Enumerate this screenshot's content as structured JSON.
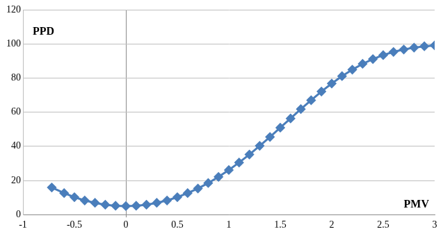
{
  "chart_data": {
    "type": "scatter",
    "x_label": "PMV",
    "y_label": "PPD",
    "series": [
      {
        "name": "PPD",
        "color": "#4a7ebb",
        "marker": "diamond",
        "line_style": "solid",
        "x": [
          -0.72,
          -0.6,
          -0.5,
          -0.4,
          -0.3,
          -0.2,
          -0.1,
          0,
          0.1,
          0.2,
          0.3,
          0.4,
          0.5,
          0.6,
          0.7,
          0.8,
          0.9,
          1.0,
          1.1,
          1.2,
          1.3,
          1.4,
          1.5,
          1.6,
          1.7,
          1.8,
          1.9,
          2.0,
          2.1,
          2.2,
          2.3,
          2.4,
          2.5,
          2.6,
          2.7,
          2.8,
          2.9,
          3.0
        ],
        "values": [
          15.9,
          12.6,
          10.2,
          8.3,
          6.9,
          5.8,
          5.2,
          5,
          5.2,
          5.8,
          6.9,
          8.3,
          10.2,
          12.6,
          15.3,
          18.5,
          22.1,
          26.1,
          30.5,
          35.2,
          40.3,
          45.5,
          50.9,
          56.3,
          61.8,
          67.0,
          72.1,
          76.8,
          81.1,
          84.9,
          88.3,
          91.1,
          93.4,
          95.3,
          96.7,
          97.8,
          98.6,
          99.1
        ]
      }
    ],
    "xlim": [
      -1,
      3
    ],
    "xticks": [
      -1,
      -0.5,
      0,
      0.5,
      1,
      1.5,
      2,
      2.5,
      3
    ],
    "ylim": [
      0,
      120
    ],
    "yticks": [
      0,
      20,
      40,
      60,
      80,
      100,
      120
    ],
    "grid": true
  }
}
